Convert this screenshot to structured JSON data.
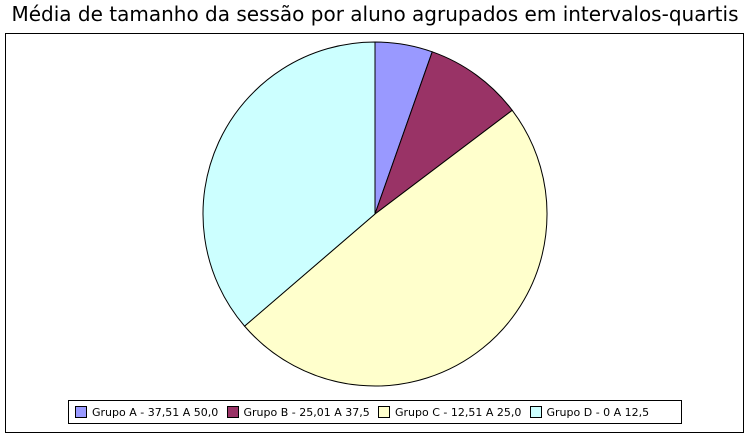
{
  "chart_data": {
    "type": "pie",
    "title": "Média de tamanho da sessão por aluno agrupados em intervalos-quartis",
    "categories": [
      "Grupo A - 37,51 A 50,0",
      "Grupo B - 25,01 A 37,5",
      "Grupo C - 12,51 A 25,0",
      "Grupo D - 0 A 12,5"
    ],
    "values": [
      5.4,
      9.3,
      49.0,
      36.3
    ],
    "colors": [
      "#9999ff",
      "#993366",
      "#ffffcc",
      "#ccffff"
    ],
    "legend_position": "bottom"
  }
}
